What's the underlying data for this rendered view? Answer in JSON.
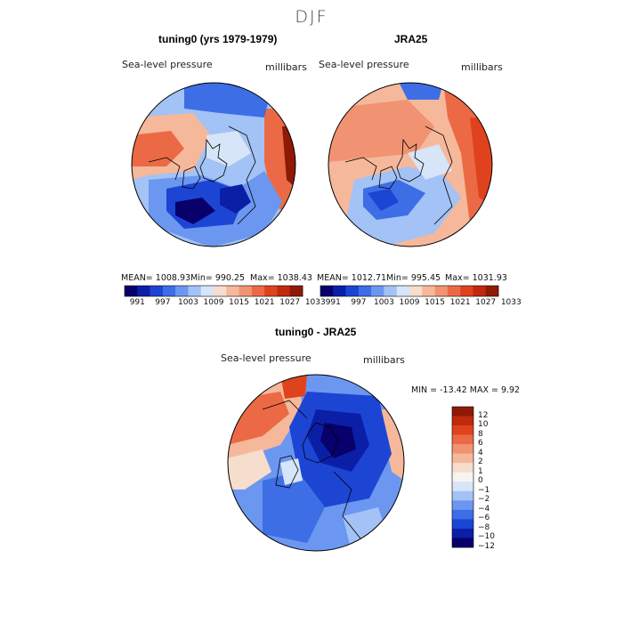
{
  "season_title": "DJF",
  "panels": [
    {
      "title": "tuning0 (yrs 1979-1979)",
      "variable": "Sea-level pressure",
      "units": "millibars",
      "stats": {
        "mean": "MEAN= 1008.93",
        "min": "Min= 990.25",
        "max": "Max= 1038.43"
      }
    },
    {
      "title": "JRA25",
      "variable": "Sea-level pressure",
      "units": "millibars",
      "stats": {
        "mean": "MEAN= 1012.71",
        "min": "Min= 995.45",
        "max": "Max= 1031.93"
      }
    },
    {
      "title": "tuning0 - JRA25",
      "variable": "Sea-level pressure",
      "units": "millibars",
      "stats": {
        "minmax": "MIN = -13.42 MAX =   9.92"
      }
    }
  ],
  "colorbar_main": {
    "colors": [
      "#08006b",
      "#0b1fa6",
      "#1c45d4",
      "#3d6ee6",
      "#6c97f0",
      "#a3c2f5",
      "#d6e5f7",
      "#f7ddcd",
      "#f5b89a",
      "#f19372",
      "#eb6a45",
      "#df431e",
      "#bf2a0c",
      "#8e1a06"
    ],
    "tick_labels": [
      "991",
      "997",
      "1003",
      "1009",
      "1015",
      "1021",
      "1027",
      "1033"
    ]
  },
  "colorbar_diff": {
    "colors": [
      "#8e1a06",
      "#bf2a0c",
      "#df431e",
      "#eb6a45",
      "#f19372",
      "#f5b89a",
      "#f7ddcd",
      "#f7f3ee",
      "#d6e5f7",
      "#a3c2f5",
      "#6c97f0",
      "#3d6ee6",
      "#1c45d4",
      "#0b1fa6",
      "#08006b"
    ],
    "tick_labels": [
      "12",
      "10",
      "8",
      "6",
      "4",
      "2",
      "1",
      "0",
      "−1",
      "−2",
      "−4",
      "−6",
      "−8",
      "−10",
      "−12"
    ]
  }
}
